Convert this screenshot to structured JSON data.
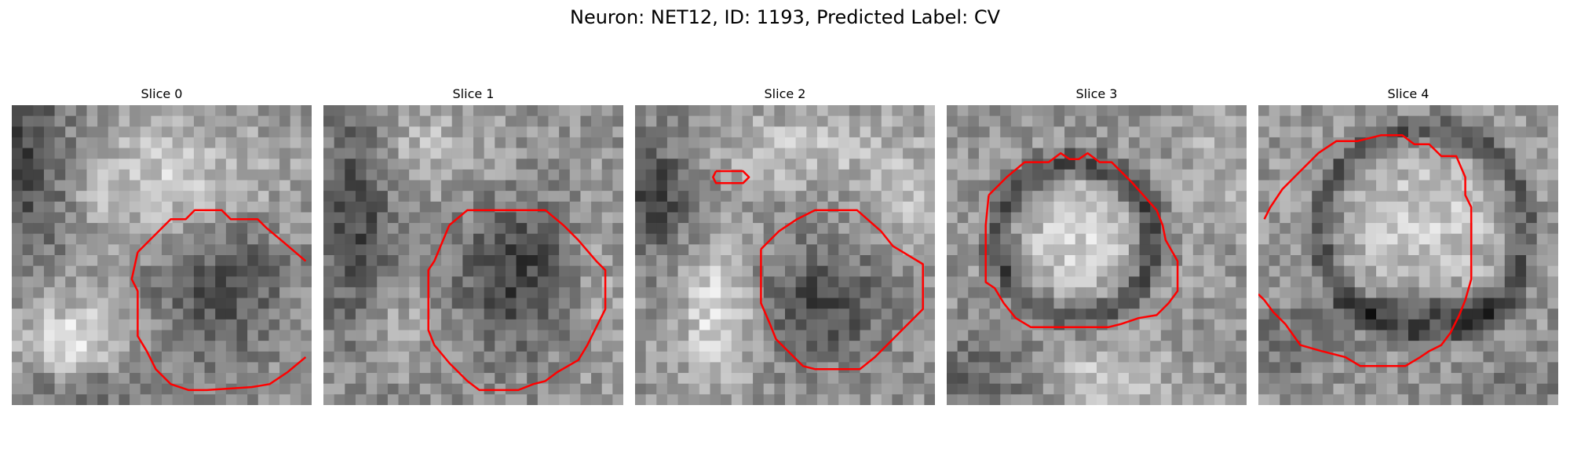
{
  "figure": {
    "title": "Neuron: NET12, ID: 1193, Predicted Label: CV"
  },
  "panels": [
    {
      "title": "Slice 0"
    },
    {
      "title": "Slice 1"
    },
    {
      "title": "Slice 2"
    },
    {
      "title": "Slice 3"
    },
    {
      "title": "Slice 4"
    }
  ],
  "colors": {
    "contour": "#ff0000"
  }
}
